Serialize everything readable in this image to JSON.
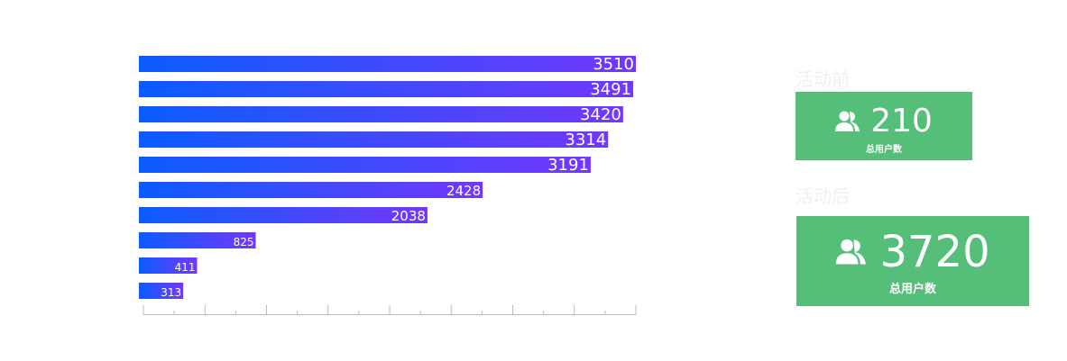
{
  "chart_data": {
    "type": "bar",
    "orientation": "horizontal",
    "values": [
      3510,
      3491,
      3420,
      3314,
      3191,
      2428,
      2038,
      825,
      411,
      313
    ],
    "data_labels": [
      "3510",
      "3491",
      "3420",
      "3314",
      "3191",
      "2428",
      "2038",
      "825",
      "411",
      "313"
    ],
    "xlim": [
      0,
      3510
    ],
    "gradient": [
      "#0a5cff",
      "#7337ff"
    ],
    "grid": false
  },
  "cards": [
    {
      "title": "活动前",
      "value": "210",
      "label": "总用户数",
      "icon": "users-icon"
    },
    {
      "title": "活动后",
      "value": "3720",
      "label": "总用户数",
      "icon": "users-icon"
    }
  ],
  "colors": {
    "card": "#55bf79",
    "title": "#f0f0f0"
  }
}
